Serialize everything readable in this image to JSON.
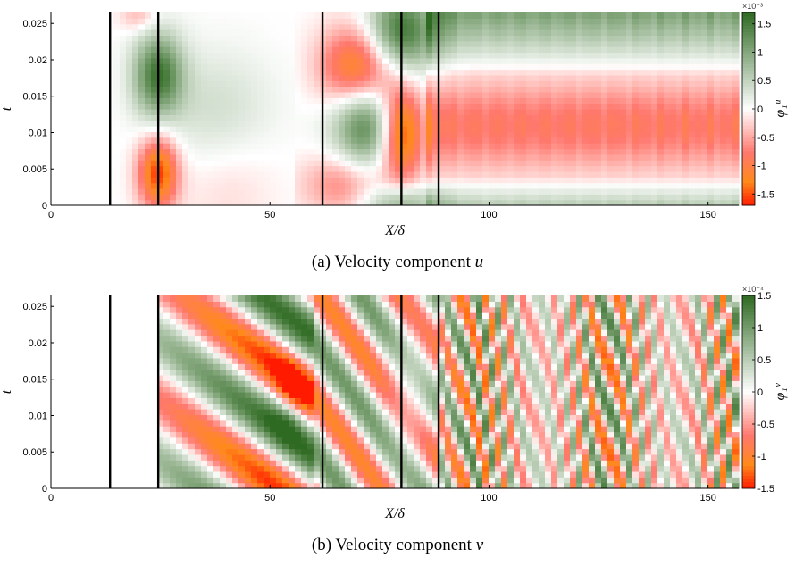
{
  "chart_data": [
    {
      "id": "a",
      "type": "heatmap",
      "caption_prefix": "(a) Velocity component",
      "caption_var": "u",
      "xlabel": "X/δ",
      "ylabel": "t",
      "colorbar_label": "φ₁ᵘ",
      "colorbar_multiplier": "×10⁻³",
      "xlim": [
        0,
        157
      ],
      "ylim": [
        0,
        0.0265
      ],
      "xticks": [
        0,
        50,
        100,
        150
      ],
      "yticks": [
        0,
        0.005,
        0.01,
        0.015,
        0.02,
        0.025
      ],
      "ytick_labels": [
        "0",
        "0.005",
        "0.01",
        "0.015",
        "0.02",
        "0.025"
      ],
      "clim": [
        -1.7,
        1.7
      ],
      "colorbar_ticks": [
        -1.5,
        -1,
        -0.5,
        0,
        0.5,
        1,
        1.5
      ],
      "colorbar_tick_labels": [
        "-1.5",
        "-1",
        "-0.5",
        "0",
        "0.5",
        "1",
        "1.5"
      ],
      "vertical_lines_x": [
        13.5,
        24.5,
        62,
        80,
        88.5
      ],
      "colors": {
        "positive": "#2f6a22",
        "negative": "#ff1a00",
        "mid_negative": "#ff8a1a",
        "zero": "#ffffff"
      }
    },
    {
      "id": "b",
      "type": "heatmap",
      "caption_prefix": "(b) Velocity component",
      "caption_var": "v",
      "xlabel": "X/δ",
      "ylabel": "t",
      "colorbar_label": "φ₁ᵛ",
      "colorbar_multiplier": "×10⁻⁴",
      "xlim": [
        0,
        157
      ],
      "ylim": [
        0,
        0.0265
      ],
      "xticks": [
        0,
        50,
        100,
        150
      ],
      "yticks": [
        0,
        0.005,
        0.01,
        0.015,
        0.02,
        0.025
      ],
      "ytick_labels": [
        "0",
        "0.005",
        "0.01",
        "0.015",
        "0.02",
        "0.025"
      ],
      "clim": [
        -1.5,
        1.5
      ],
      "colorbar_ticks": [
        -1.5,
        -1,
        -0.5,
        0,
        0.5,
        1,
        1.5
      ],
      "colorbar_tick_labels": [
        "-1.5",
        "-1",
        "-0.5",
        "0",
        "0.5",
        "1",
        "1.5"
      ],
      "vertical_lines_x": [
        13.5,
        24.5,
        62,
        80,
        88.5
      ],
      "colors": {
        "positive": "#2f6a22",
        "negative": "#ff1a00",
        "mid_negative": "#ff8a1a",
        "zero": "#ffffff"
      }
    }
  ]
}
